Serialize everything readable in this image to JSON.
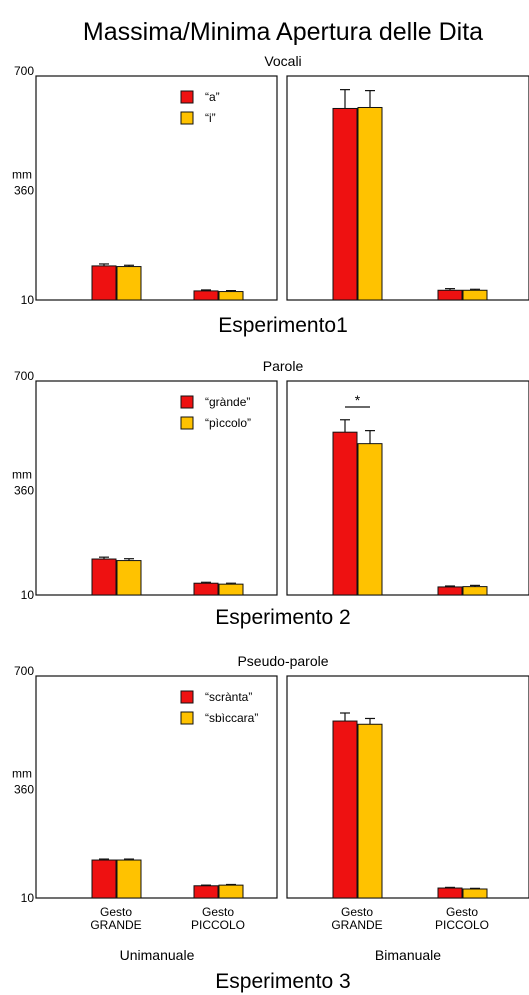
{
  "figure_title": "Massima/Minima Apertura delle Dita",
  "colors": {
    "red": "#ee1111",
    "yellow": "#ffc200",
    "axis": "#111111"
  },
  "chart_data": [
    {
      "type": "bar",
      "title": "Vocali",
      "experiment_label": "Esperimento1",
      "ylabel": "mm",
      "ylim": [
        10,
        700
      ],
      "yticks": [
        "700",
        "360",
        "10"
      ],
      "panels": [
        "Unimanuale",
        "Bimanuale"
      ],
      "categories": [
        "Gesto GRANDE",
        "Gesto PICCOLO"
      ],
      "legend_placement": "top-center",
      "series": [
        {
          "name": "“a”",
          "color": "#ee1111",
          "values": [
            [
              115,
              38
            ],
            [
              600,
              40
            ]
          ],
          "errors": [
            [
              6,
              3
            ],
            [
              58,
              5
            ]
          ]
        },
        {
          "name": "“i”",
          "color": "#ffc200",
          "values": [
            [
              113,
              36
            ],
            [
              603,
              40
            ]
          ],
          "errors": [
            [
              4,
              3
            ],
            [
              52,
              3
            ]
          ]
        }
      ],
      "annotations": []
    },
    {
      "type": "bar",
      "title": "Parole",
      "experiment_label": "Esperimento 2",
      "ylabel": "mm",
      "ylim": [
        10,
        700
      ],
      "yticks": [
        "700",
        "360",
        "10"
      ],
      "panels": [
        "Unimanuale",
        "Bimanuale"
      ],
      "categories": [
        "Gesto GRANDE",
        "Gesto PICCOLO"
      ],
      "legend_placement": "top-center",
      "series": [
        {
          "name": "“grànde”",
          "color": "#ee1111",
          "values": [
            [
              126,
              48
            ],
            [
              535,
              36
            ]
          ],
          "errors": [
            [
              6,
              3
            ],
            [
              40,
              3
            ]
          ]
        },
        {
          "name": "“pìccolo”",
          "color": "#ffc200",
          "values": [
            [
              121,
              45
            ],
            [
              498,
              37
            ]
          ],
          "errors": [
            [
              6,
              3
            ],
            [
              42,
              4
            ]
          ]
        }
      ],
      "annotations": [
        {
          "text": "*",
          "panel": 1,
          "category": 0
        }
      ]
    },
    {
      "type": "bar",
      "title": "Pseudo-parole",
      "experiment_label": "Esperimento 3",
      "ylabel": "mm",
      "ylim": [
        10,
        700
      ],
      "yticks": [
        "700",
        "360",
        "10"
      ],
      "panels": [
        "Unimanuale",
        "Bimanuale"
      ],
      "categories": [
        "Gesto GRANDE",
        "Gesto PICCOLO"
      ],
      "category_lines": [
        [
          "Gesto",
          "GRANDE"
        ],
        [
          "Gesto",
          "PICCOLO"
        ]
      ],
      "legend_placement": "top-center",
      "series": [
        {
          "name": "“scrànta”",
          "color": "#ee1111",
          "values": [
            [
              128,
              48
            ],
            [
              560,
              41
            ]
          ],
          "errors": [
            [
              3,
              2
            ],
            [
              25,
              2
            ]
          ]
        },
        {
          "name": "“sbìccara”",
          "color": "#ffc200",
          "values": [
            [
              128,
              50
            ],
            [
              550,
              38
            ]
          ],
          "errors": [
            [
              3,
              2
            ],
            [
              18,
              2
            ]
          ]
        }
      ],
      "annotations": []
    }
  ]
}
